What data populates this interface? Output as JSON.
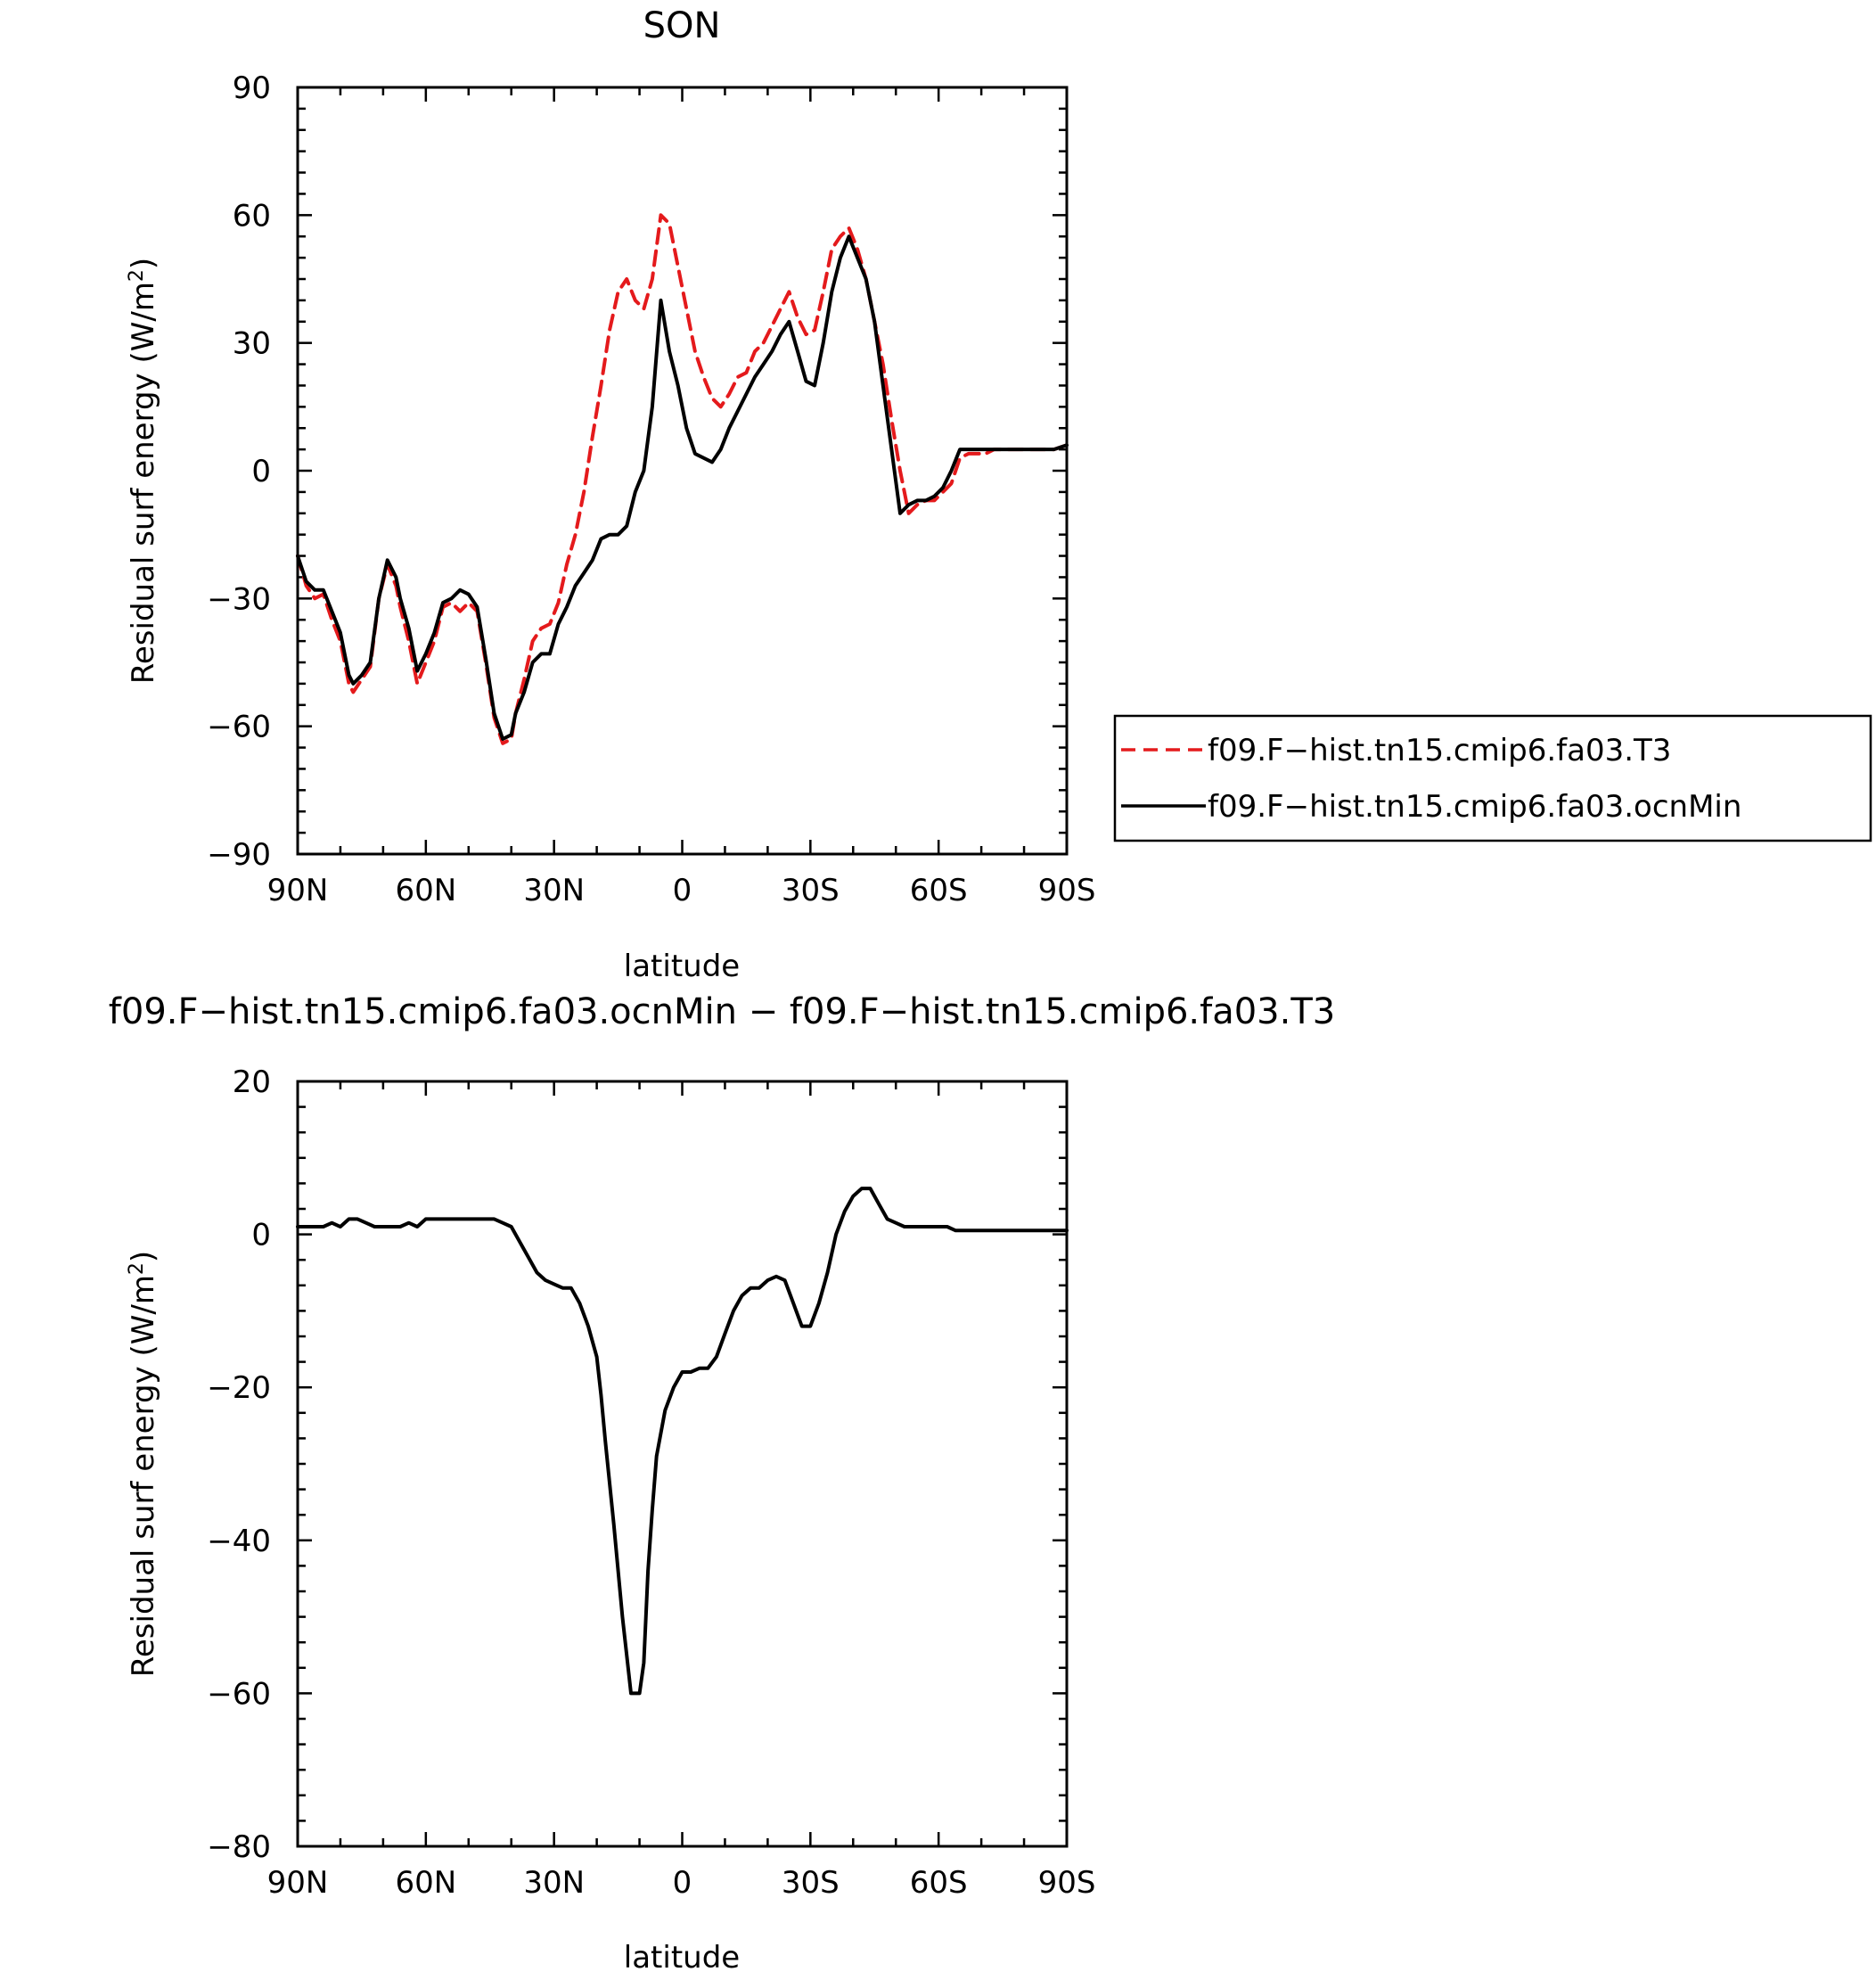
{
  "chart_data": [
    {
      "type": "line",
      "title": "SON",
      "xlabel": "latitude",
      "ylabel": "Residual surf energy (W/m²)",
      "ylabel_main": "Residual surf energy (W/m",
      "ylabel_sup": "2",
      "ylabel_end": ")",
      "xlim": [
        90,
        -90
      ],
      "ylim": [
        -90,
        90
      ],
      "x_ticks": [
        90,
        60,
        30,
        0,
        -30,
        -60,
        -90
      ],
      "x_tick_labels": [
        "90N",
        "60N",
        "30N",
        "0",
        "30S",
        "60S",
        "90S"
      ],
      "y_ticks": [
        -90,
        -60,
        -30,
        0,
        30,
        60,
        90
      ],
      "y_tick_labels": [
        "−90",
        "−60",
        "−30",
        "0",
        "30",
        "60",
        "90"
      ],
      "legend_position": "right",
      "series": [
        {
          "name": "f09.F−hist.tn15.cmip6.fa03.T3",
          "color": "#e41a1c",
          "dash": "dashed",
          "x": [
            90,
            88,
            86,
            84,
            82,
            80,
            78,
            77,
            75,
            73,
            71,
            69,
            67,
            66,
            64,
            62,
            60,
            58,
            56,
            54,
            52,
            50,
            48,
            46,
            44,
            42,
            40,
            39,
            37,
            35,
            33,
            31,
            29,
            27,
            25,
            23,
            21,
            19,
            17,
            15,
            13,
            11,
            9,
            7,
            5,
            3,
            1,
            -1,
            -3,
            -5,
            -7,
            -9,
            -11,
            -13,
            -15,
            -17,
            -19,
            -21,
            -23,
            -25,
            -27,
            -29,
            -31,
            -33,
            -35,
            -37,
            -39,
            -41,
            -43,
            -45,
            -47,
            -49,
            -51,
            -53,
            -55,
            -57,
            -59,
            -61,
            -63,
            -65,
            -67,
            -69,
            -71,
            -73,
            -75,
            -77,
            -79,
            -81,
            -83,
            -85,
            -87,
            -90
          ],
          "y": [
            -20,
            -27,
            -30,
            -29,
            -35,
            -40,
            -50,
            -52,
            -49,
            -46,
            -30,
            -22,
            -27,
            -32,
            -40,
            -50,
            -45,
            -40,
            -32,
            -31,
            -33,
            -31,
            -33,
            -45,
            -58,
            -64,
            -63,
            -57,
            -49,
            -40,
            -37,
            -36,
            -31,
            -22,
            -15,
            -5,
            8,
            20,
            33,
            42,
            45,
            40,
            38,
            45,
            60,
            58,
            48,
            38,
            28,
            22,
            17,
            15,
            18,
            22,
            23,
            28,
            30,
            34,
            38,
            42,
            36,
            32,
            33,
            42,
            52,
            55,
            57,
            52,
            45,
            35,
            25,
            12,
            0,
            -10,
            -8,
            -7,
            -7,
            -5,
            -3,
            3,
            4,
            4,
            4,
            5,
            5,
            5,
            5,
            5,
            5,
            5,
            5,
            6
          ]
        },
        {
          "name": "f09.F−hist.tn15.cmip6.fa03.ocnMin",
          "color": "#000000",
          "dash": "solid",
          "x": [
            90,
            88,
            86,
            84,
            82,
            80,
            78,
            77,
            75,
            73,
            71,
            69,
            67,
            66,
            64,
            62,
            60,
            58,
            56,
            54,
            52,
            50,
            48,
            46,
            44,
            42,
            40,
            39,
            37,
            35,
            33,
            31,
            29,
            27,
            25,
            23,
            21,
            19,
            17,
            15,
            13,
            11,
            9,
            7,
            5,
            3,
            1,
            -1,
            -3,
            -5,
            -7,
            -9,
            -11,
            -13,
            -15,
            -17,
            -19,
            -21,
            -23,
            -25,
            -27,
            -29,
            -31,
            -33,
            -35,
            -37,
            -39,
            -41,
            -43,
            -45,
            -47,
            -49,
            -51,
            -53,
            -55,
            -57,
            -59,
            -61,
            -63,
            -65,
            -67,
            -69,
            -71,
            -73,
            -75,
            -77,
            -79,
            -81,
            -83,
            -85,
            -87,
            -90
          ],
          "y": [
            -20,
            -26,
            -28,
            -28,
            -33,
            -38,
            -48,
            -50,
            -48,
            -45,
            -30,
            -21,
            -25,
            -30,
            -37,
            -47,
            -43,
            -38,
            -31,
            -30,
            -28,
            -29,
            -32,
            -44,
            -57,
            -63,
            -62,
            -57,
            -52,
            -45,
            -43,
            -43,
            -36,
            -32,
            -27,
            -24,
            -21,
            -16,
            -15,
            -15,
            -13,
            -5,
            0,
            15,
            40,
            28,
            20,
            10,
            4,
            3,
            2,
            5,
            10,
            14,
            18,
            22,
            25,
            28,
            32,
            35,
            28,
            21,
            20,
            30,
            42,
            50,
            55,
            50,
            45,
            35,
            20,
            5,
            -10,
            -8,
            -7,
            -7,
            -6,
            -4,
            0,
            5,
            5,
            5,
            5,
            5,
            5,
            5,
            5,
            5,
            5,
            5,
            5,
            6
          ]
        }
      ]
    },
    {
      "type": "line",
      "title": "f09.F−hist.tn15.cmip6.fa03.ocnMin − f09.F−hist.tn15.cmip6.fa03.T3",
      "xlabel": "latitude",
      "ylabel": "Residual surf energy (W/m²)",
      "ylabel_main": "Residual surf energy (W/m",
      "ylabel_sup": "2",
      "ylabel_end": ")",
      "xlim": [
        90,
        -90
      ],
      "ylim": [
        -80,
        20
      ],
      "x_ticks": [
        90,
        60,
        30,
        0,
        -30,
        -60,
        -90
      ],
      "x_tick_labels": [
        "90N",
        "60N",
        "30N",
        "0",
        "30S",
        "60S",
        "90S"
      ],
      "y_ticks": [
        -80,
        -60,
        -40,
        -20,
        0,
        20
      ],
      "y_tick_labels": [
        "−80",
        "−60",
        "−40",
        "−20",
        "0",
        "20"
      ],
      "series": [
        {
          "color": "#000000",
          "dash": "solid",
          "x": [
            90,
            88,
            86,
            84,
            82,
            80,
            78,
            76,
            74,
            72,
            70,
            68,
            66,
            64,
            62,
            60,
            58,
            56,
            54,
            52,
            50,
            48,
            46,
            44,
            42,
            40,
            38,
            36,
            34,
            32,
            30,
            28,
            26,
            24,
            22,
            20,
            19,
            18,
            16,
            14,
            12,
            10,
            9,
            8,
            7,
            6,
            4,
            2,
            0,
            -2,
            -4,
            -6,
            -8,
            -10,
            -12,
            -14,
            -16,
            -18,
            -20,
            -22,
            -24,
            -26,
            -28,
            -30,
            -32,
            -34,
            -36,
            -38,
            -40,
            -42,
            -44,
            -46,
            -48,
            -50,
            -52,
            -54,
            -56,
            -58,
            -60,
            -62,
            -64,
            -66,
            -68,
            -70,
            -72,
            -74,
            -76,
            -78,
            -80,
            -82,
            -84,
            -86,
            -88,
            -90
          ],
          "y": [
            1,
            1,
            1,
            1,
            1.5,
            1,
            2,
            2,
            1.5,
            1,
            1,
            1,
            1,
            1.5,
            1,
            2,
            2,
            2,
            2,
            2,
            2,
            2,
            2,
            2,
            1.5,
            1,
            -1,
            -3,
            -5,
            -6,
            -6.5,
            -7,
            -7,
            -9,
            -12,
            -16,
            -21,
            -27,
            -38,
            -50,
            -60,
            -60,
            -56,
            -44,
            -36,
            -29,
            -23,
            -20,
            -18,
            -18,
            -17.5,
            -17.5,
            -16,
            -13,
            -10,
            -8,
            -7,
            -7,
            -6,
            -5.5,
            -6,
            -9,
            -12,
            -12,
            -9,
            -5,
            0,
            3,
            5,
            6,
            6,
            4,
            2,
            1.5,
            1,
            1,
            1,
            1,
            1,
            1,
            0.5,
            0.5,
            0.5,
            0.5,
            0.5,
            0.5,
            0.5,
            0.5,
            0.5,
            0.5,
            0.5,
            0.5,
            0.5,
            0.5
          ]
        }
      ]
    }
  ]
}
